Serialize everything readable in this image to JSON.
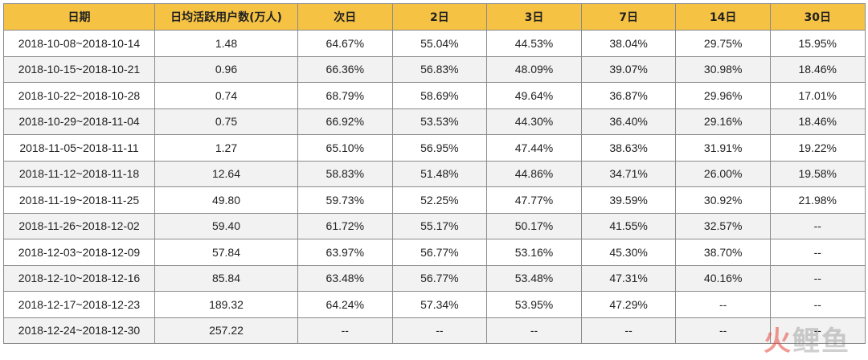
{
  "table": {
    "headers": [
      "日期",
      "日均活跃用户数(万人)",
      "次日",
      "2日",
      "3日",
      "7日",
      "14日",
      "30日"
    ],
    "rows": [
      [
        "2018-10-08~2018-10-14",
        "1.48",
        "64.67%",
        "55.04%",
        "44.53%",
        "38.04%",
        "29.75%",
        "15.95%"
      ],
      [
        "2018-10-15~2018-10-21",
        "0.96",
        "66.36%",
        "56.83%",
        "48.09%",
        "39.07%",
        "30.98%",
        "18.46%"
      ],
      [
        "2018-10-22~2018-10-28",
        "0.74",
        "68.79%",
        "58.69%",
        "49.64%",
        "36.87%",
        "29.96%",
        "17.01%"
      ],
      [
        "2018-10-29~2018-11-04",
        "0.75",
        "66.92%",
        "53.53%",
        "44.30%",
        "36.40%",
        "29.16%",
        "18.46%"
      ],
      [
        "2018-11-05~2018-11-11",
        "1.27",
        "65.10%",
        "56.95%",
        "47.44%",
        "38.63%",
        "31.91%",
        "19.22%"
      ],
      [
        "2018-11-12~2018-11-18",
        "12.64",
        "58.83%",
        "51.48%",
        "44.86%",
        "34.71%",
        "26.00%",
        "19.58%"
      ],
      [
        "2018-11-19~2018-11-25",
        "49.80",
        "59.73%",
        "52.25%",
        "47.77%",
        "39.59%",
        "30.92%",
        "21.98%"
      ],
      [
        "2018-11-26~2018-12-02",
        "59.40",
        "61.72%",
        "55.17%",
        "50.17%",
        "41.55%",
        "32.57%",
        "--"
      ],
      [
        "2018-12-03~2018-12-09",
        "57.84",
        "63.97%",
        "56.77%",
        "53.16%",
        "45.30%",
        "38.70%",
        "--"
      ],
      [
        "2018-12-10~2018-12-16",
        "85.84",
        "63.48%",
        "56.77%",
        "53.48%",
        "47.31%",
        "40.16%",
        "--"
      ],
      [
        "2018-12-17~2018-12-23",
        "189.32",
        "64.24%",
        "57.34%",
        "53.95%",
        "47.29%",
        "--",
        "--"
      ],
      [
        "2018-12-24~2018-12-30",
        "257.22",
        "--",
        "--",
        "--",
        "--",
        "--",
        "--"
      ]
    ]
  },
  "watermark": {
    "part1": "火",
    "part2": "鲤鱼"
  },
  "colors": {
    "header_bg": "#f6c244",
    "row_shade": "#f2f2f2",
    "border": "#8a8a8a"
  }
}
